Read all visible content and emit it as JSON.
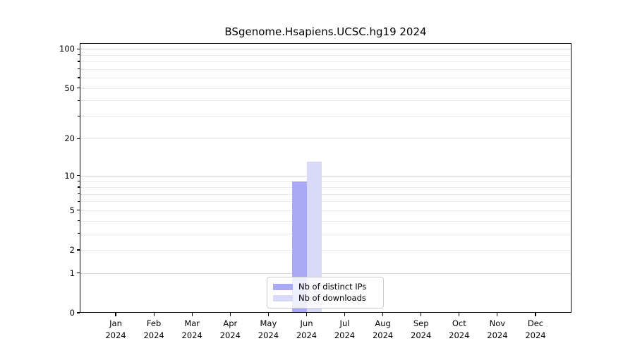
{
  "chart_data": {
    "type": "bar",
    "title": "BSgenome.Hsapiens.UCSC.hg19 2024",
    "categories": [
      "Jan",
      "Feb",
      "Mar",
      "Apr",
      "May",
      "Jun",
      "Jul",
      "Aug",
      "Sep",
      "Oct",
      "Nov",
      "Dec"
    ],
    "year_label": "2024",
    "series": [
      {
        "name": "Nb of distinct IPs",
        "color": "#a9a9f5",
        "values": [
          0,
          0,
          0,
          0,
          0,
          9,
          0,
          0,
          0,
          0,
          0,
          0
        ]
      },
      {
        "name": "Nb of downloads",
        "color": "#d9d9f8",
        "values": [
          0,
          0,
          0,
          0,
          0,
          13,
          0,
          0,
          0,
          0,
          0,
          0
        ]
      }
    ],
    "yscale": "log1p",
    "ylim": [
      0,
      110.7
    ],
    "yticks": [
      0,
      1,
      2,
      5,
      10,
      20,
      50,
      100
    ],
    "grid_major": [
      1,
      10,
      100
    ],
    "grid_minor": [
      2,
      3,
      4,
      5,
      6,
      7,
      8,
      9,
      20,
      30,
      40,
      50,
      60,
      70,
      80,
      90
    ],
    "legend_position": "lower center",
    "grid": true,
    "colors": {
      "bar_distinct_ips": "#a9a9f5",
      "bar_downloads": "#d9d9f8",
      "major_grid": "#d4d4d4",
      "minor_grid": "#ebebeb",
      "frame": "#000000",
      "legend_border": "#cccccc"
    }
  }
}
